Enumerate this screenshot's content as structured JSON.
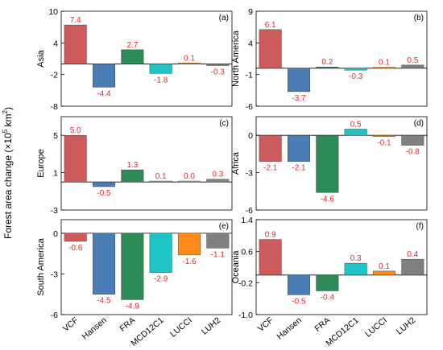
{
  "ylabel": {
    "main": "Forest area change (×10",
    "exp1": "5",
    "mid": " km",
    "exp2": "2",
    "end": ")"
  },
  "categories": [
    "VCF",
    "Hansen",
    "FRA",
    "MCD12C1",
    "LUCCI",
    "LUH2"
  ],
  "colors": [
    "#cd5b5b",
    "#4a7db5",
    "#2e8b57",
    "#20c4c4",
    "#ff8c1a",
    "#808080"
  ],
  "label_color": "#e8262a",
  "chart_data": [
    {
      "type": "bar",
      "panel": "(a)",
      "region": "Asia",
      "ylim": [
        -8,
        10
      ],
      "yticks": [
        -8,
        -2,
        4,
        10
      ],
      "values": [
        7.4,
        -4.4,
        2.7,
        -1.8,
        0.1,
        -0.3
      ],
      "labels": [
        "7.4",
        "-4.4",
        "2.7",
        "-1.8",
        "0.1",
        "-0.3"
      ]
    },
    {
      "type": "bar",
      "panel": "(b)",
      "region": "North America",
      "ylim": [
        -6,
        9
      ],
      "yticks": [
        -6,
        -1,
        4,
        9
      ],
      "values": [
        6.1,
        -3.7,
        0.2,
        -0.3,
        0.1,
        0.5
      ],
      "labels": [
        "6.1",
        "-3.7",
        "0.2",
        "-0.3",
        "0.1",
        "0.5"
      ]
    },
    {
      "type": "bar",
      "panel": "(c)",
      "region": "Europe",
      "ylim": [
        -3,
        7
      ],
      "yticks": [
        -3,
        1,
        5
      ],
      "values": [
        5.0,
        -0.5,
        1.3,
        0.1,
        0.0,
        0.3
      ],
      "labels": [
        "5.0",
        "-0.5",
        "1.3",
        "0.1",
        "0.0",
        "0.3"
      ]
    },
    {
      "type": "bar",
      "panel": "(d)",
      "region": "Africa",
      "ylim": [
        -6,
        1.5
      ],
      "yticks": [
        -6,
        -3,
        0
      ],
      "values": [
        -2.1,
        -2.1,
        -4.6,
        0.5,
        -0.1,
        -0.8
      ],
      "labels": [
        "-2.1",
        "-2.1",
        "-4.6",
        "0.5",
        "-0.1",
        "-0.8"
      ]
    },
    {
      "type": "bar",
      "panel": "(e)",
      "region": "South America",
      "ylim": [
        -6,
        1
      ],
      "yticks": [
        -6,
        -3,
        0
      ],
      "values": [
        -0.6,
        -4.5,
        -4.9,
        -2.9,
        -1.6,
        -1.1
      ],
      "labels": [
        "-0.6",
        "-4.5",
        "-4.9",
        "-2.9",
        "-1.6",
        "-1.1"
      ]
    },
    {
      "type": "bar",
      "panel": "(f)",
      "region": "Oceania",
      "ylim": [
        -1.0,
        1.4
      ],
      "yticks": [
        -1.0,
        -0.2,
        0.6,
        1.4
      ],
      "ytick_labels": [
        "-1.0",
        "-0.2",
        "0.6",
        "1.4"
      ],
      "values": [
        0.9,
        -0.5,
        -0.4,
        0.3,
        0.1,
        0.4
      ],
      "labels": [
        "0.9",
        "-0.5",
        "-0.4",
        "0.3",
        "0.1",
        "0.4"
      ]
    }
  ]
}
